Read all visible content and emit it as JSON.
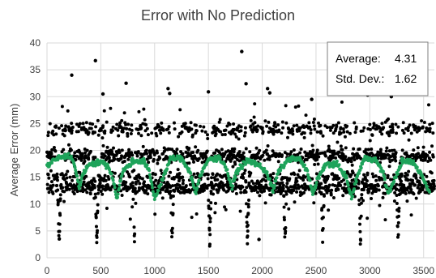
{
  "chart_data": {
    "type": "scatter",
    "title": "Error with No Prediction",
    "xlabel": "",
    "ylabel": "Average Error (mm)",
    "xlim": [
      0,
      3600
    ],
    "ylim": [
      0,
      40
    ],
    "x_ticks": [
      "0",
      "500",
      "1000",
      "1500",
      "2000",
      "2500",
      "3000",
      "3500"
    ],
    "y_ticks": [
      "0",
      "5",
      "10",
      "15",
      "20",
      "25",
      "30",
      "35",
      "40"
    ],
    "grid": true,
    "legend": "none",
    "colors": {
      "points": "#000000",
      "trend": "#1ea35a",
      "grid": "#d9d9d9",
      "text": "#404040"
    },
    "annotation": {
      "average_label": "Average:",
      "average_value": "4.31",
      "std_label": "Std. Dev.:",
      "std_value": "1.62"
    },
    "cycle": {
      "period": 350,
      "start": 0,
      "phase_dips": [
        95,
        130
      ],
      "bands": [
        13,
        15,
        19,
        24
      ],
      "outliers": [
        {
          "x": 230,
          "y": 34.0
        },
        {
          "x": 450,
          "y": 36.7
        },
        {
          "x": 520,
          "y": 30.5
        },
        {
          "x": 735,
          "y": 32.5
        },
        {
          "x": 1125,
          "y": 31.5
        },
        {
          "x": 1140,
          "y": 30.6
        },
        {
          "x": 1500,
          "y": 30.9
        },
        {
          "x": 1810,
          "y": 38.4
        },
        {
          "x": 1850,
          "y": 32.4
        },
        {
          "x": 2050,
          "y": 31.5
        },
        {
          "x": 2070,
          "y": 30.7
        },
        {
          "x": 2460,
          "y": 29.5
        },
        {
          "x": 2980,
          "y": 30.3
        },
        {
          "x": 3200,
          "y": 30.0
        },
        {
          "x": 1970,
          "y": 3.4
        }
      ]
    },
    "green_trend": [
      {
        "x": 0,
        "y": 17
      },
      {
        "x": 50,
        "y": 18
      },
      {
        "x": 100,
        "y": 18.5
      },
      {
        "x": 180,
        "y": 19
      },
      {
        "x": 230,
        "y": 18.5
      },
      {
        "x": 260,
        "y": 17
      },
      {
        "x": 300,
        "y": 13
      },
      {
        "x": 340,
        "y": 16
      },
      {
        "x": 400,
        "y": 17.5
      },
      {
        "x": 500,
        "y": 17.8
      },
      {
        "x": 560,
        "y": 17.2
      },
      {
        "x": 610,
        "y": 15
      },
      {
        "x": 650,
        "y": 11
      },
      {
        "x": 700,
        "y": 16
      },
      {
        "x": 800,
        "y": 18
      },
      {
        "x": 900,
        "y": 18
      },
      {
        "x": 950,
        "y": 16
      },
      {
        "x": 1000,
        "y": 11
      },
      {
        "x": 1060,
        "y": 14
      },
      {
        "x": 1150,
        "y": 18.5
      },
      {
        "x": 1250,
        "y": 18.5
      },
      {
        "x": 1330,
        "y": 16
      },
      {
        "x": 1380,
        "y": 12
      },
      {
        "x": 1420,
        "y": 15
      },
      {
        "x": 1500,
        "y": 18.3
      },
      {
        "x": 1600,
        "y": 18.6
      },
      {
        "x": 1660,
        "y": 17
      },
      {
        "x": 1720,
        "y": 13
      },
      {
        "x": 1760,
        "y": 16
      },
      {
        "x": 1850,
        "y": 18
      },
      {
        "x": 1950,
        "y": 17.5
      },
      {
        "x": 2040,
        "y": 16
      },
      {
        "x": 2100,
        "y": 12.5
      },
      {
        "x": 2150,
        "y": 16
      },
      {
        "x": 2250,
        "y": 18.5
      },
      {
        "x": 2350,
        "y": 18.3
      },
      {
        "x": 2420,
        "y": 16
      },
      {
        "x": 2470,
        "y": 12
      },
      {
        "x": 2520,
        "y": 15
      },
      {
        "x": 2600,
        "y": 17.5
      },
      {
        "x": 2700,
        "y": 17.3
      },
      {
        "x": 2780,
        "y": 15
      },
      {
        "x": 2830,
        "y": 11
      },
      {
        "x": 2880,
        "y": 15
      },
      {
        "x": 2950,
        "y": 18.5
      },
      {
        "x": 3050,
        "y": 18.3
      },
      {
        "x": 3120,
        "y": 16
      },
      {
        "x": 3170,
        "y": 12
      },
      {
        "x": 3220,
        "y": 14
      },
      {
        "x": 3300,
        "y": 18
      },
      {
        "x": 3400,
        "y": 17.8
      },
      {
        "x": 3480,
        "y": 15.5
      },
      {
        "x": 3560,
        "y": 12
      }
    ]
  }
}
